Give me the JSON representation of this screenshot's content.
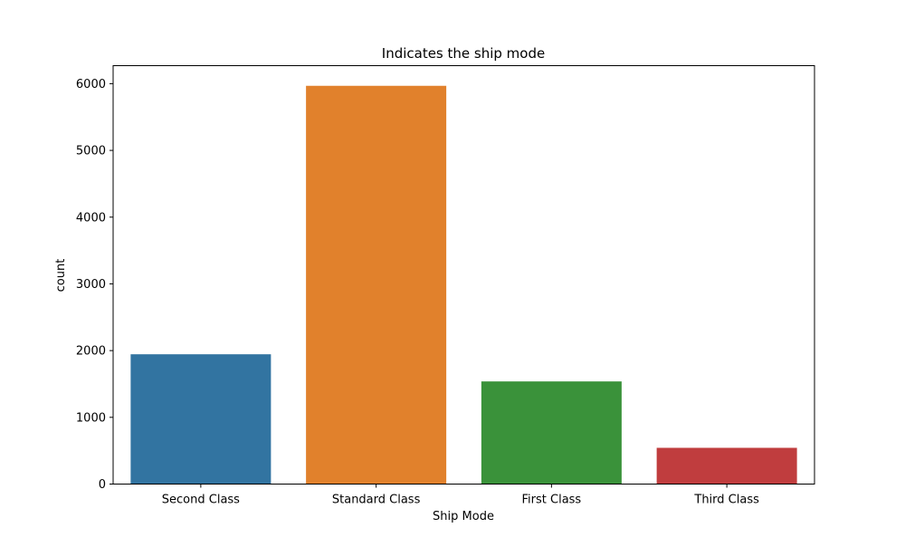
{
  "chart_data": {
    "type": "bar",
    "title": "Indicates the ship mode",
    "xlabel": "Ship Mode",
    "ylabel": "count",
    "categories": [
      "Second Class",
      "Standard Class",
      "First Class",
      "Third Class"
    ],
    "values": [
      1945,
      5968,
      1538,
      543
    ],
    "colors": [
      "#3274a1",
      "#e1812c",
      "#3a923a",
      "#c03d3e"
    ],
    "ylim": [
      0,
      6270
    ],
    "yticks": [
      0,
      1000,
      2000,
      3000,
      4000,
      5000,
      6000
    ],
    "grid": false,
    "legend": "none"
  }
}
